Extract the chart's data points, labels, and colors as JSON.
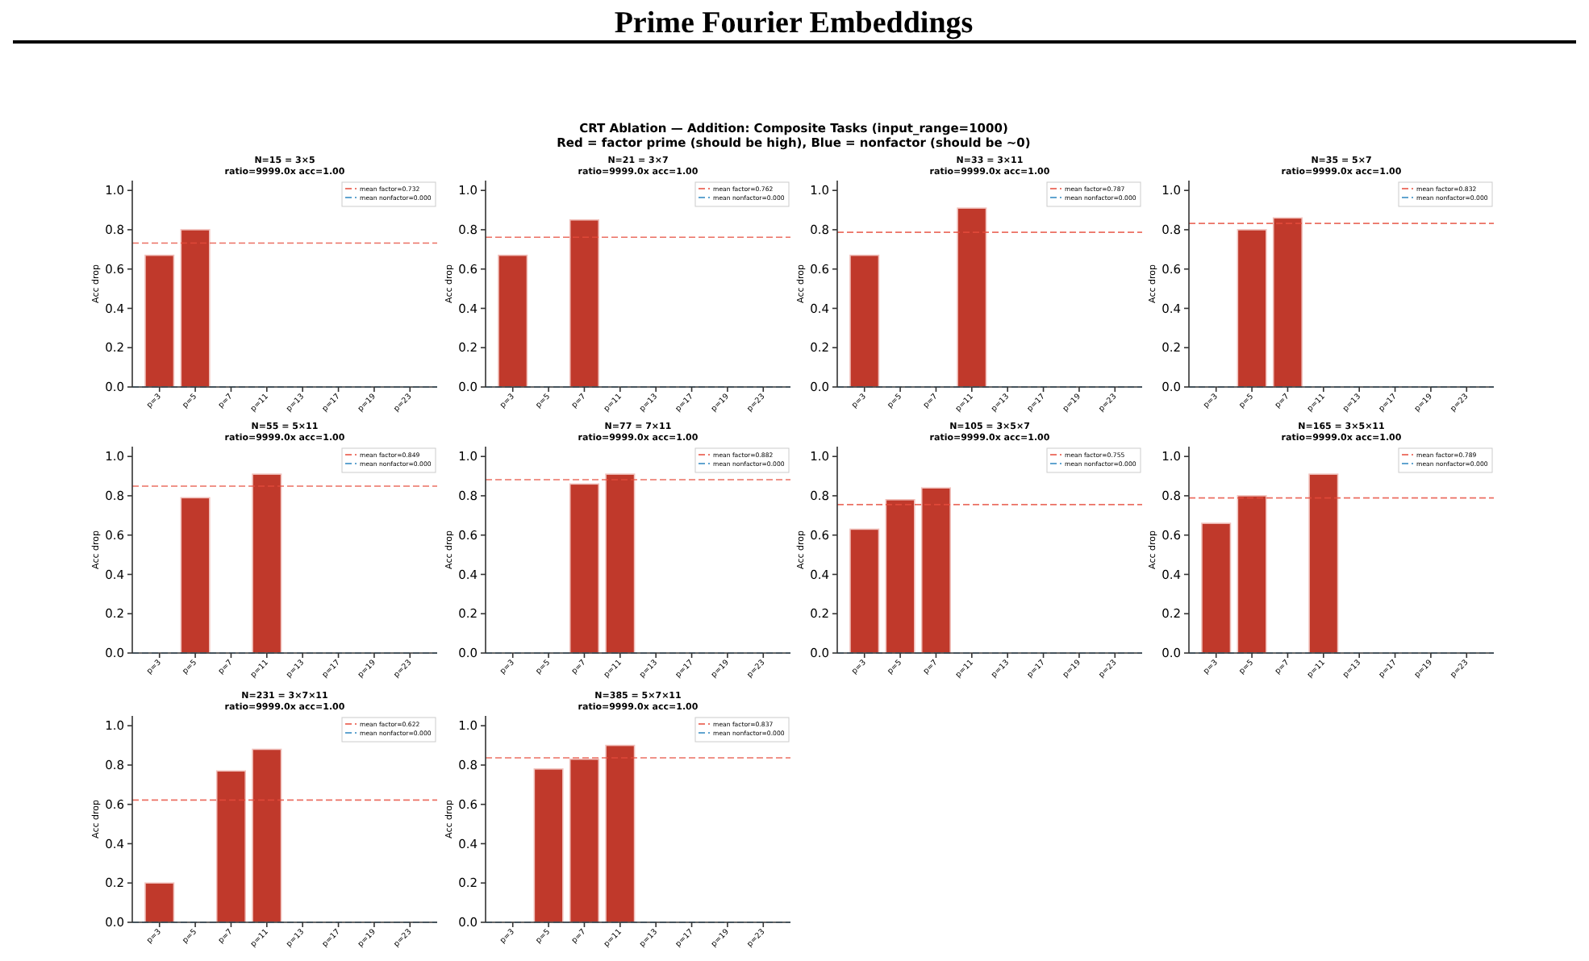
{
  "chart_data": [
    {
      "type": "other",
      "title": "Prime Fourier Embeddings",
      "annotations": [
        "CRT Ablation — Addition: Composite Tasks  (input_range=1000)",
        "Red = factor prime (should be high), Blue = nonfactor (should be ~0)"
      ]
    },
    {
      "type": "bar",
      "title": "N=15 = 3×5",
      "subtitle": "ratio=9999.0x  acc=1.00",
      "ylabel": "Acc drop",
      "categories": [
        "p=3",
        "p=5",
        "p=7",
        "p=11",
        "p=13",
        "p=17",
        "p=19",
        "p=23"
      ],
      "values": [
        0.67,
        0.8,
        0,
        0,
        0,
        0,
        0,
        0
      ],
      "color": "#c0392b",
      "ylim": [
        0,
        1.05
      ],
      "yticks": [
        {
          "value": 0,
          "label": "0.0"
        },
        {
          "value": 0.2,
          "label": "0.2"
        },
        {
          "value": 0.4,
          "label": "0.4"
        },
        {
          "value": 0.6,
          "label": "0.6"
        },
        {
          "value": 0.8,
          "label": "0.8"
        },
        {
          "value": 1,
          "label": "1.0"
        }
      ],
      "legend": "top right",
      "ref_lines": [
        {
          "axis": "y",
          "value": 0.732,
          "label": "mean factor=0.732",
          "color": "#e74c3c",
          "line_style": "dashed"
        },
        {
          "axis": "y",
          "value": 0,
          "label": "mean nonfactor=0.000",
          "color": "#2e86c1",
          "line_style": "dashed"
        }
      ]
    },
    {
      "type": "bar",
      "title": "N=21 = 3×7",
      "subtitle": "ratio=9999.0x  acc=1.00",
      "ylabel": "Acc drop",
      "categories": [
        "p=3",
        "p=5",
        "p=7",
        "p=11",
        "p=13",
        "p=17",
        "p=19",
        "p=23"
      ],
      "values": [
        0.67,
        0,
        0.85,
        0,
        0,
        0,
        0,
        0
      ],
      "color": "#c0392b",
      "ylim": [
        0,
        1.05
      ],
      "yticks": [
        {
          "value": 0,
          "label": "0.0"
        },
        {
          "value": 0.2,
          "label": "0.2"
        },
        {
          "value": 0.4,
          "label": "0.4"
        },
        {
          "value": 0.6,
          "label": "0.6"
        },
        {
          "value": 0.8,
          "label": "0.8"
        },
        {
          "value": 1,
          "label": "1.0"
        }
      ],
      "legend": "top right",
      "ref_lines": [
        {
          "axis": "y",
          "value": 0.762,
          "label": "mean factor=0.762",
          "color": "#e74c3c",
          "line_style": "dashed"
        },
        {
          "axis": "y",
          "value": 0,
          "label": "mean nonfactor=0.000",
          "color": "#2e86c1",
          "line_style": "dashed"
        }
      ]
    },
    {
      "type": "bar",
      "title": "N=33 = 3×11",
      "subtitle": "ratio=9999.0x  acc=1.00",
      "ylabel": "Acc drop",
      "categories": [
        "p=3",
        "p=5",
        "p=7",
        "p=11",
        "p=13",
        "p=17",
        "p=19",
        "p=23"
      ],
      "values": [
        0.67,
        0,
        0,
        0.91,
        0,
        0,
        0,
        0
      ],
      "color": "#c0392b",
      "ylim": [
        0,
        1.05
      ],
      "yticks": [
        {
          "value": 0,
          "label": "0.0"
        },
        {
          "value": 0.2,
          "label": "0.2"
        },
        {
          "value": 0.4,
          "label": "0.4"
        },
        {
          "value": 0.6,
          "label": "0.6"
        },
        {
          "value": 0.8,
          "label": "0.8"
        },
        {
          "value": 1,
          "label": "1.0"
        }
      ],
      "legend": "top right",
      "ref_lines": [
        {
          "axis": "y",
          "value": 0.787,
          "label": "mean factor=0.787",
          "color": "#e74c3c",
          "line_style": "dashed"
        },
        {
          "axis": "y",
          "value": 0,
          "label": "mean nonfactor=0.000",
          "color": "#2e86c1",
          "line_style": "dashed"
        }
      ]
    },
    {
      "type": "bar",
      "title": "N=35 = 5×7",
      "subtitle": "ratio=9999.0x  acc=1.00",
      "ylabel": "Acc drop",
      "categories": [
        "p=3",
        "p=5",
        "p=7",
        "p=11",
        "p=13",
        "p=17",
        "p=19",
        "p=23"
      ],
      "values": [
        0,
        0.8,
        0.86,
        0,
        0,
        0,
        0,
        0
      ],
      "color": "#c0392b",
      "ylim": [
        0,
        1.05
      ],
      "yticks": [
        {
          "value": 0,
          "label": "0.0"
        },
        {
          "value": 0.2,
          "label": "0.2"
        },
        {
          "value": 0.4,
          "label": "0.4"
        },
        {
          "value": 0.6,
          "label": "0.6"
        },
        {
          "value": 0.8,
          "label": "0.8"
        },
        {
          "value": 1,
          "label": "1.0"
        }
      ],
      "legend": "top right",
      "ref_lines": [
        {
          "axis": "y",
          "value": 0.832,
          "label": "mean factor=0.832",
          "color": "#e74c3c",
          "line_style": "dashed"
        },
        {
          "axis": "y",
          "value": 0,
          "label": "mean nonfactor=0.000",
          "color": "#2e86c1",
          "line_style": "dashed"
        }
      ]
    },
    {
      "type": "bar",
      "title": "N=55 = 5×11",
      "subtitle": "ratio=9999.0x  acc=1.00",
      "ylabel": "Acc drop",
      "categories": [
        "p=3",
        "p=5",
        "p=7",
        "p=11",
        "p=13",
        "p=17",
        "p=19",
        "p=23"
      ],
      "values": [
        0,
        0.79,
        0,
        0.91,
        0,
        0,
        0,
        0
      ],
      "color": "#c0392b",
      "ylim": [
        0,
        1.05
      ],
      "yticks": [
        {
          "value": 0,
          "label": "0.0"
        },
        {
          "value": 0.2,
          "label": "0.2"
        },
        {
          "value": 0.4,
          "label": "0.4"
        },
        {
          "value": 0.6,
          "label": "0.6"
        },
        {
          "value": 0.8,
          "label": "0.8"
        },
        {
          "value": 1,
          "label": "1.0"
        }
      ],
      "legend": "top right",
      "ref_lines": [
        {
          "axis": "y",
          "value": 0.849,
          "label": "mean factor=0.849",
          "color": "#e74c3c",
          "line_style": "dashed"
        },
        {
          "axis": "y",
          "value": 0,
          "label": "mean nonfactor=0.000",
          "color": "#2e86c1",
          "line_style": "dashed"
        }
      ]
    },
    {
      "type": "bar",
      "title": "N=77 = 7×11",
      "subtitle": "ratio=9999.0x  acc=1.00",
      "ylabel": "Acc drop",
      "categories": [
        "p=3",
        "p=5",
        "p=7",
        "p=11",
        "p=13",
        "p=17",
        "p=19",
        "p=23"
      ],
      "values": [
        0,
        0,
        0.86,
        0.91,
        0,
        0,
        0,
        0
      ],
      "color": "#c0392b",
      "ylim": [
        0,
        1.05
      ],
      "yticks": [
        {
          "value": 0,
          "label": "0.0"
        },
        {
          "value": 0.2,
          "label": "0.2"
        },
        {
          "value": 0.4,
          "label": "0.4"
        },
        {
          "value": 0.6,
          "label": "0.6"
        },
        {
          "value": 0.8,
          "label": "0.8"
        },
        {
          "value": 1,
          "label": "1.0"
        }
      ],
      "legend": "top right",
      "ref_lines": [
        {
          "axis": "y",
          "value": 0.882,
          "label": "mean factor=0.882",
          "color": "#e74c3c",
          "line_style": "dashed"
        },
        {
          "axis": "y",
          "value": 0,
          "label": "mean nonfactor=0.000",
          "color": "#2e86c1",
          "line_style": "dashed"
        }
      ]
    },
    {
      "type": "bar",
      "title": "N=105 = 3×5×7",
      "subtitle": "ratio=9999.0x  acc=1.00",
      "ylabel": "Acc drop",
      "categories": [
        "p=3",
        "p=5",
        "p=7",
        "p=11",
        "p=13",
        "p=17",
        "p=19",
        "p=23"
      ],
      "values": [
        0.63,
        0.78,
        0.84,
        0,
        0,
        0,
        0,
        0
      ],
      "color": "#c0392b",
      "ylim": [
        0,
        1.05
      ],
      "yticks": [
        {
          "value": 0,
          "label": "0.0"
        },
        {
          "value": 0.2,
          "label": "0.2"
        },
        {
          "value": 0.4,
          "label": "0.4"
        },
        {
          "value": 0.6,
          "label": "0.6"
        },
        {
          "value": 0.8,
          "label": "0.8"
        },
        {
          "value": 1,
          "label": "1.0"
        }
      ],
      "legend": "top right",
      "ref_lines": [
        {
          "axis": "y",
          "value": 0.755,
          "label": "mean factor=0.755",
          "color": "#e74c3c",
          "line_style": "dashed"
        },
        {
          "axis": "y",
          "value": 0,
          "label": "mean nonfactor=0.000",
          "color": "#2e86c1",
          "line_style": "dashed"
        }
      ]
    },
    {
      "type": "bar",
      "title": "N=165 = 3×5×11",
      "subtitle": "ratio=9999.0x  acc=1.00",
      "ylabel": "Acc drop",
      "categories": [
        "p=3",
        "p=5",
        "p=7",
        "p=11",
        "p=13",
        "p=17",
        "p=19",
        "p=23"
      ],
      "values": [
        0.66,
        0.8,
        0,
        0.91,
        0,
        0,
        0,
        0
      ],
      "color": "#c0392b",
      "ylim": [
        0,
        1.05
      ],
      "yticks": [
        {
          "value": 0,
          "label": "0.0"
        },
        {
          "value": 0.2,
          "label": "0.2"
        },
        {
          "value": 0.4,
          "label": "0.4"
        },
        {
          "value": 0.6,
          "label": "0.6"
        },
        {
          "value": 0.8,
          "label": "0.8"
        },
        {
          "value": 1,
          "label": "1.0"
        }
      ],
      "legend": "top right",
      "ref_lines": [
        {
          "axis": "y",
          "value": 0.789,
          "label": "mean factor=0.789",
          "color": "#e74c3c",
          "line_style": "dashed"
        },
        {
          "axis": "y",
          "value": 0,
          "label": "mean nonfactor=0.000",
          "color": "#2e86c1",
          "line_style": "dashed"
        }
      ]
    },
    {
      "type": "bar",
      "title": "N=231 = 3×7×11",
      "subtitle": "ratio=9999.0x  acc=1.00",
      "ylabel": "Acc drop",
      "categories": [
        "p=3",
        "p=5",
        "p=7",
        "p=11",
        "p=13",
        "p=17",
        "p=19",
        "p=23"
      ],
      "values": [
        0.2,
        0,
        0.77,
        0.88,
        0,
        0,
        0,
        0
      ],
      "color": "#c0392b",
      "ylim": [
        0,
        1.05
      ],
      "yticks": [
        {
          "value": 0,
          "label": "0.0"
        },
        {
          "value": 0.2,
          "label": "0.2"
        },
        {
          "value": 0.4,
          "label": "0.4"
        },
        {
          "value": 0.6,
          "label": "0.6"
        },
        {
          "value": 0.8,
          "label": "0.8"
        },
        {
          "value": 1,
          "label": "1.0"
        }
      ],
      "legend": "top right",
      "ref_lines": [
        {
          "axis": "y",
          "value": 0.622,
          "label": "mean factor=0.622",
          "color": "#e74c3c",
          "line_style": "dashed"
        },
        {
          "axis": "y",
          "value": 0,
          "label": "mean nonfactor=0.000",
          "color": "#2e86c1",
          "line_style": "dashed"
        }
      ]
    },
    {
      "type": "bar",
      "title": "N=385 = 5×7×11",
      "subtitle": "ratio=9999.0x  acc=1.00",
      "ylabel": "Acc drop",
      "categories": [
        "p=3",
        "p=5",
        "p=7",
        "p=11",
        "p=13",
        "p=17",
        "p=19",
        "p=23"
      ],
      "values": [
        0,
        0.78,
        0.83,
        0.9,
        0,
        0,
        0,
        0
      ],
      "color": "#c0392b",
      "ylim": [
        0,
        1.05
      ],
      "yticks": [
        {
          "value": 0,
          "label": "0.0"
        },
        {
          "value": 0.2,
          "label": "0.2"
        },
        {
          "value": 0.4,
          "label": "0.4"
        },
        {
          "value": 0.6,
          "label": "0.6"
        },
        {
          "value": 0.8,
          "label": "0.8"
        },
        {
          "value": 1,
          "label": "1.0"
        }
      ],
      "legend": "top right",
      "ref_lines": [
        {
          "axis": "y",
          "value": 0.837,
          "label": "mean factor=0.837",
          "color": "#e74c3c",
          "line_style": "dashed"
        },
        {
          "axis": "y",
          "value": 0,
          "label": "mean nonfactor=0.000",
          "color": "#2e86c1",
          "line_style": "dashed"
        }
      ]
    }
  ]
}
